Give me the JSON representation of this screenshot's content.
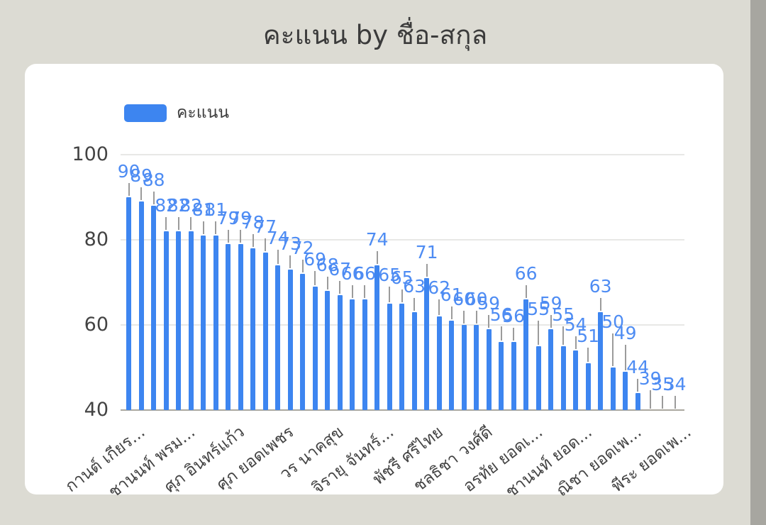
{
  "title": "คะแนน by ชื่อ-สกุล",
  "legend": {
    "label": "คะแนน"
  },
  "colors": {
    "bar": "#3d85f0",
    "value_label": "#4e8cf3",
    "axis_text": "#434343",
    "gridline": "#e8e8e6",
    "baseline": "#aba89f",
    "leader_line": "#9b9b9b",
    "card_bg": "#ffffff",
    "page_bg": "#dcdbd3",
    "scrollbar": "#a7a6a0",
    "title_text": "#3b3b3b"
  },
  "y_axis": {
    "ticks": [
      100,
      80,
      60,
      40
    ],
    "min": 40,
    "max": 100
  },
  "x_axis": {
    "tick_labels": [
      "กานต์ เกียร...",
      "ชานนท์ พรม...",
      "ศุภ อินทร์แก้ว",
      "ศุภ ยอดเพชร",
      "วร นาคสุข",
      "จิรายุ จันทร์...",
      "พัชรี ศรีไทย",
      "ชลธิชา วงศ์ดี",
      "อรทัย ยอดเ...",
      "ชานนท์ ยอด...",
      "ณิชา ยอดเพ...",
      "พีระ ยอดเพ..."
    ],
    "label_step": 4
  },
  "chart_data": {
    "type": "bar",
    "title": "คะแนน by ชื่อ-สกุล",
    "series": [
      {
        "name": "คะแนน",
        "values": [
          90,
          89,
          88,
          82,
          82,
          82,
          81,
          81,
          79,
          79,
          78,
          77,
          74,
          73,
          72,
          69,
          68,
          67,
          66,
          66,
          74,
          65,
          65,
          63,
          71,
          62,
          61,
          60,
          60,
          59,
          56,
          56,
          66,
          55,
          59,
          55,
          54,
          51,
          63,
          50,
          49,
          44,
          39,
          35,
          34
        ]
      }
    ],
    "n_bars": 45,
    "categories_labeled": [
      "กานต์ เกียร...",
      "ชานนท์ พรม...",
      "ศุภ อินทร์แก้ว",
      "ศุภ ยอดเพชร",
      "วร นาคสุข",
      "จิรายุ จันทร์...",
      "พัชรี ศรีไทย",
      "ชลธิชา วงศ์ดี",
      "อรทัย ยอดเ...",
      "ชานนท์ ยอด...",
      "ณิชา ยอดเพ...",
      "พีระ ยอดเพ..."
    ],
    "category_label_step": 4,
    "ylim": [
      40,
      100
    ],
    "grid": true,
    "data_labels": true,
    "legend_position": "top-left"
  }
}
